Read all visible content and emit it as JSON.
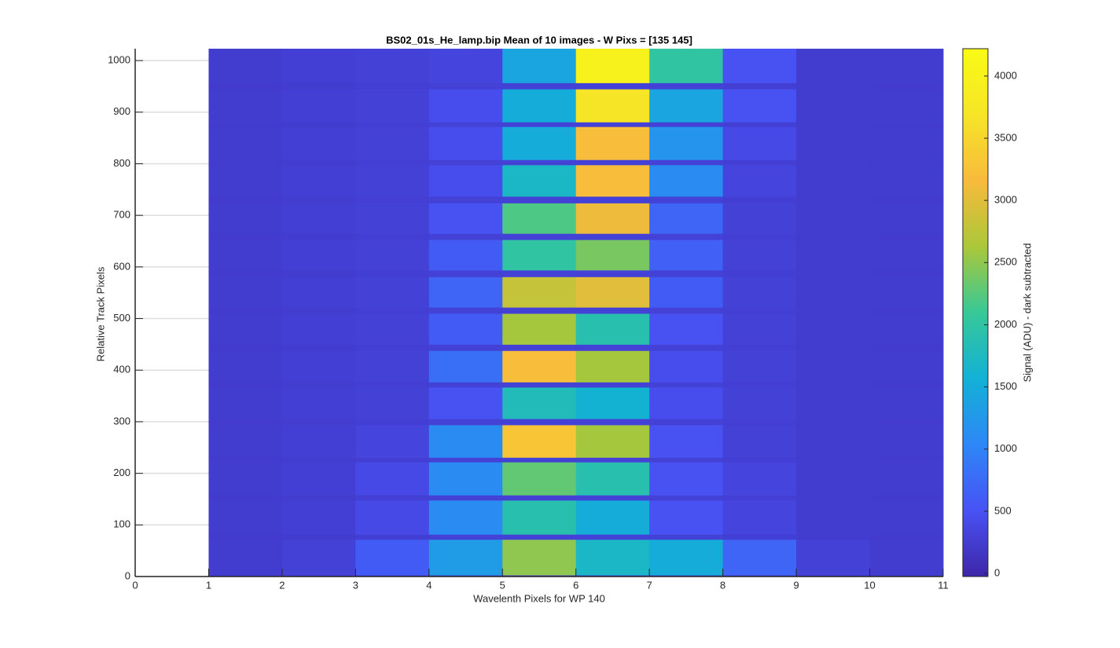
{
  "chart_data": {
    "type": "heatmap",
    "title": "BS02_01s_He_lamp.bip  Mean of 10 images - W Pixs = [135  145]",
    "xlabel": "Wavelenth Pixels for WP 140",
    "ylabel": "Relative Track Pixels",
    "colorbar_label": "Signal (ADU) - dark subtracted",
    "colormap": "parula",
    "grid": true,
    "xlim": [
      0,
      11
    ],
    "xticks": [
      0,
      1,
      2,
      3,
      4,
      5,
      6,
      7,
      8,
      9,
      10,
      11
    ],
    "ylim": [
      0,
      1023
    ],
    "yticks": [
      0,
      100,
      200,
      300,
      400,
      500,
      600,
      700,
      800,
      900,
      1000
    ],
    "clim": [
      -25,
      4220
    ],
    "cticks": [
      0,
      500,
      1000,
      1500,
      2000,
      2500,
      3000,
      3500,
      4000
    ],
    "x_edges": [
      1,
      2,
      3,
      4,
      5,
      6,
      7,
      8,
      9,
      10,
      11
    ],
    "y_edges": [
      0,
      3,
      72,
      82,
      148,
      158,
      222,
      231,
      294,
      306,
      367,
      377,
      438,
      450,
      510,
      522,
      581,
      594,
      653,
      665,
      724,
      737,
      798,
      808,
      872,
      881,
      945,
      957,
      1023
    ],
    "values": [
      [
        230,
        250,
        280,
        300,
        300,
        300,
        300,
        280,
        250,
        230
      ],
      [
        250,
        300,
        600,
        1300,
        2500,
        1700,
        1500,
        700,
        300,
        250
      ],
      [
        230,
        250,
        280,
        300,
        300,
        300,
        300,
        280,
        250,
        230
      ],
      [
        250,
        280,
        400,
        1100,
        1900,
        1500,
        500,
        350,
        250,
        250
      ],
      [
        230,
        250,
        280,
        300,
        300,
        300,
        300,
        280,
        250,
        230
      ],
      [
        250,
        280,
        400,
        1100,
        2300,
        1900,
        500,
        350,
        250,
        250
      ],
      [
        230,
        250,
        280,
        300,
        300,
        300,
        300,
        280,
        250,
        230
      ],
      [
        250,
        280,
        350,
        1100,
        3300,
        2600,
        500,
        300,
        250,
        250
      ],
      [
        230,
        250,
        280,
        300,
        300,
        300,
        300,
        280,
        250,
        230
      ],
      [
        250,
        280,
        300,
        500,
        1800,
        1600,
        450,
        300,
        250,
        250
      ],
      [
        230,
        250,
        280,
        300,
        300,
        300,
        300,
        280,
        250,
        230
      ],
      [
        250,
        280,
        300,
        800,
        3200,
        2600,
        450,
        300,
        250,
        250
      ],
      [
        230,
        250,
        280,
        300,
        300,
        300,
        300,
        280,
        250,
        230
      ],
      [
        250,
        280,
        300,
        600,
        2600,
        1900,
        500,
        300,
        250,
        250
      ],
      [
        230,
        250,
        280,
        300,
        300,
        300,
        300,
        280,
        250,
        230
      ],
      [
        250,
        280,
        300,
        700,
        2800,
        3000,
        600,
        300,
        250,
        250
      ],
      [
        230,
        250,
        280,
        300,
        300,
        300,
        300,
        280,
        250,
        230
      ],
      [
        250,
        280,
        300,
        600,
        2000,
        2400,
        650,
        300,
        250,
        250
      ],
      [
        230,
        250,
        280,
        300,
        300,
        300,
        300,
        280,
        250,
        230
      ],
      [
        250,
        280,
        300,
        500,
        2200,
        3100,
        700,
        300,
        250,
        250
      ],
      [
        230,
        250,
        280,
        300,
        300,
        300,
        300,
        280,
        250,
        230
      ],
      [
        250,
        280,
        300,
        450,
        1700,
        3200,
        1100,
        350,
        250,
        250
      ],
      [
        230,
        250,
        280,
        300,
        300,
        300,
        300,
        280,
        250,
        230
      ],
      [
        250,
        280,
        300,
        450,
        1500,
        3200,
        1200,
        400,
        250,
        250
      ],
      [
        230,
        250,
        280,
        300,
        300,
        300,
        300,
        280,
        250,
        230
      ],
      [
        250,
        280,
        300,
        450,
        1500,
        3700,
        1400,
        500,
        250,
        250
      ],
      [
        230,
        250,
        280,
        300,
        300,
        300,
        300,
        280,
        250,
        230
      ],
      [
        250,
        280,
        300,
        350,
        1400,
        4000,
        2000,
        500,
        250,
        250
      ]
    ]
  }
}
